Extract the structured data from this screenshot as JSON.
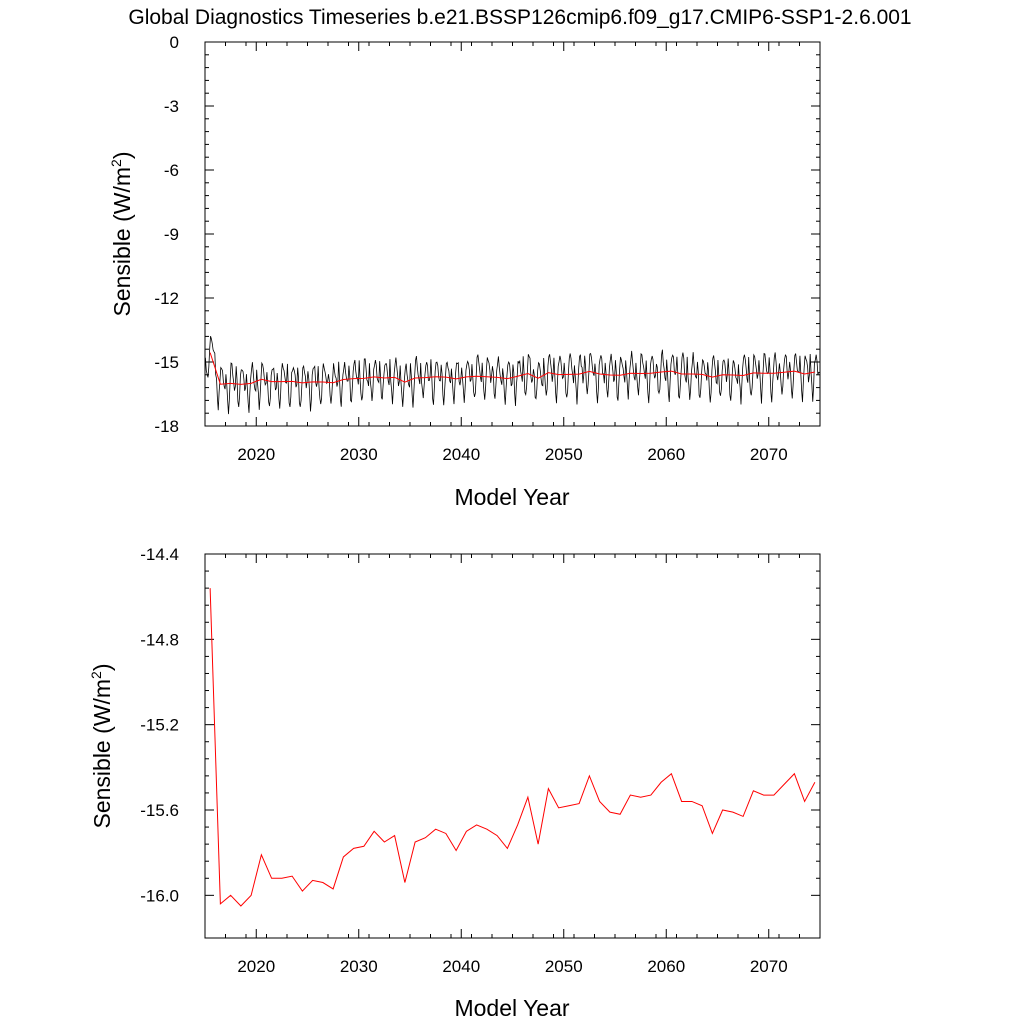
{
  "title": "Global Diagnostics Timeseries b.e21.BSSP126cmip6.f09_g17.CMIP6-SSP1-2.6.001",
  "colors": {
    "monthly": "#000000",
    "annual": "#ff0000",
    "axes": "#000000"
  },
  "chart_data": [
    {
      "type": "line",
      "xlabel": "Model Year",
      "ylabel_main": "Sensible (W/m",
      "ylabel_sup": "2",
      "ylabel_end": ")",
      "xlim": [
        2015,
        2075
      ],
      "ylim": [
        -18,
        0
      ],
      "xticks": [
        2020,
        2030,
        2040,
        2050,
        2060,
        2070
      ],
      "xtick_labels": [
        "2020",
        "2030",
        "2040",
        "2050",
        "2060",
        "2070"
      ],
      "yticks": [
        0,
        -3,
        -6,
        -9,
        -12,
        -15,
        -18
      ],
      "ytick_labels": [
        "0",
        "-3",
        "-6",
        "-9",
        "-12",
        "-15",
        "-18"
      ],
      "grid": false,
      "monthly_climatology": [
        -15.2,
        -15.8,
        -16.6,
        -17.0,
        -16.4,
        -15.6,
        -15.1,
        -15.0,
        -15.3,
        -15.7,
        -16.0,
        -16.0
      ],
      "series": [
        {
          "kind": "monthly",
          "start_year": 2015,
          "first_month": 1,
          "months": 720,
          "color": "#000000",
          "description_values": "monthly global mean, range approx. -17.6 to -14.4"
        },
        {
          "kind": "annual",
          "x": [
            2015,
            2016,
            2017,
            2018,
            2019,
            2020,
            2021,
            2022,
            2023,
            2024,
            2025,
            2026,
            2027,
            2028,
            2029,
            2030,
            2031,
            2032,
            2033,
            2034,
            2035,
            2036,
            2037,
            2038,
            2039,
            2040,
            2041,
            2042,
            2043,
            2044,
            2045,
            2046,
            2047,
            2048,
            2049,
            2050,
            2051,
            2052,
            2053,
            2054,
            2055,
            2056,
            2057,
            2058,
            2059,
            2060,
            2061,
            2062,
            2063,
            2064,
            2065,
            2066,
            2067,
            2068,
            2069,
            2070,
            2071,
            2072,
            2073,
            2074
          ],
          "values": [
            -14.56,
            -16.04,
            -16.0,
            -16.05,
            -16.0,
            -15.81,
            -15.92,
            -15.92,
            -15.91,
            -15.98,
            -15.93,
            -15.94,
            -15.97,
            -15.82,
            -15.78,
            -15.77,
            -15.7,
            -15.75,
            -15.72,
            -15.94,
            -15.75,
            -15.73,
            -15.69,
            -15.71,
            -15.79,
            -15.7,
            -15.67,
            -15.69,
            -15.72,
            -15.78,
            -15.67,
            -15.54,
            -15.76,
            -15.5,
            -15.59,
            -15.58,
            -15.57,
            -15.44,
            -15.56,
            -15.61,
            -15.62,
            -15.53,
            -15.54,
            -15.53,
            -15.47,
            -15.43,
            -15.56,
            -15.56,
            -15.58,
            -15.71,
            -15.6,
            -15.61,
            -15.63,
            -15.51,
            -15.53,
            -15.53,
            -15.48,
            -15.43,
            -15.56,
            -15.47
          ],
          "color": "#ff0000"
        }
      ]
    },
    {
      "type": "line",
      "xlabel": "Model Year",
      "ylabel_main": "Sensible (W/m",
      "ylabel_sup": "2",
      "ylabel_end": ")",
      "xlim": [
        2015,
        2075
      ],
      "ylim": [
        -16.2,
        -14.4
      ],
      "xticks": [
        2020,
        2030,
        2040,
        2050,
        2060,
        2070
      ],
      "xtick_labels": [
        "2020",
        "2030",
        "2040",
        "2050",
        "2060",
        "2070"
      ],
      "yticks": [
        -14.4,
        -14.8,
        -15.2,
        -15.6,
        -16.0
      ],
      "ytick_labels": [
        "-14.4",
        "-14.8",
        "-15.2",
        "-15.6",
        "-16.0"
      ],
      "grid": false,
      "series": [
        {
          "kind": "annual",
          "x": [
            2015,
            2016,
            2017,
            2018,
            2019,
            2020,
            2021,
            2022,
            2023,
            2024,
            2025,
            2026,
            2027,
            2028,
            2029,
            2030,
            2031,
            2032,
            2033,
            2034,
            2035,
            2036,
            2037,
            2038,
            2039,
            2040,
            2041,
            2042,
            2043,
            2044,
            2045,
            2046,
            2047,
            2048,
            2049,
            2050,
            2051,
            2052,
            2053,
            2054,
            2055,
            2056,
            2057,
            2058,
            2059,
            2060,
            2061,
            2062,
            2063,
            2064,
            2065,
            2066,
            2067,
            2068,
            2069,
            2070,
            2071,
            2072,
            2073,
            2074
          ],
          "values": [
            -14.56,
            -16.04,
            -16.0,
            -16.05,
            -16.0,
            -15.81,
            -15.92,
            -15.92,
            -15.91,
            -15.98,
            -15.93,
            -15.94,
            -15.97,
            -15.82,
            -15.78,
            -15.77,
            -15.7,
            -15.75,
            -15.72,
            -15.94,
            -15.75,
            -15.73,
            -15.69,
            -15.71,
            -15.79,
            -15.7,
            -15.67,
            -15.69,
            -15.72,
            -15.78,
            -15.67,
            -15.54,
            -15.76,
            -15.5,
            -15.59,
            -15.58,
            -15.57,
            -15.44,
            -15.56,
            -15.61,
            -15.62,
            -15.53,
            -15.54,
            -15.53,
            -15.47,
            -15.43,
            -15.56,
            -15.56,
            -15.58,
            -15.71,
            -15.6,
            -15.61,
            -15.63,
            -15.51,
            -15.53,
            -15.53,
            -15.48,
            -15.43,
            -15.56,
            -15.47
          ],
          "color": "#ff0000"
        }
      ]
    }
  ]
}
